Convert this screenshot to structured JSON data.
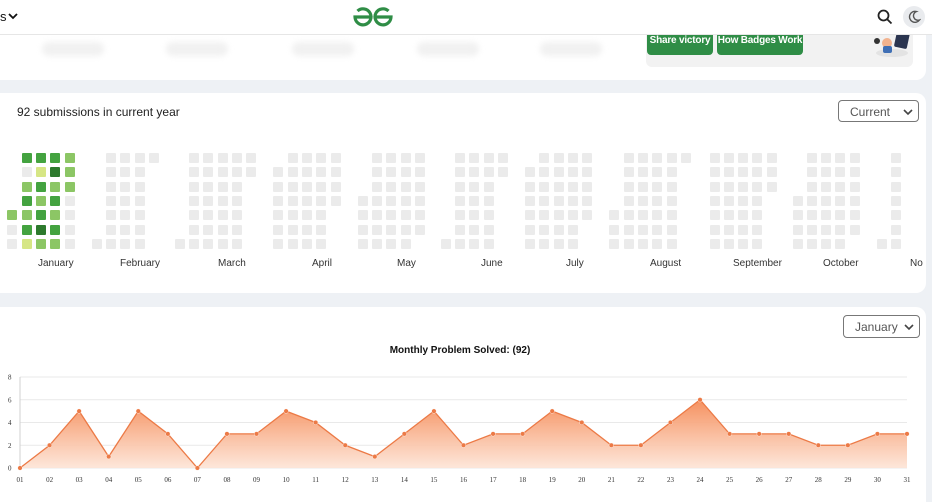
{
  "header": {
    "left_fragment": "s",
    "logo_alt": "GfG"
  },
  "badges": {
    "share_label": "Share victory",
    "how_label": "How Badges Work"
  },
  "heatmap": {
    "title": "92 submissions in current year",
    "year_select": "Current",
    "months": [
      "January",
      "February",
      "March",
      "April",
      "May",
      "June",
      "July",
      "August",
      "September",
      "October",
      "No"
    ],
    "colors": {
      "empty": "#ebebeb",
      "l1": "#d6e685",
      "l2": "#8cc665",
      "l3": "#44a340",
      "l4": "#2d7a2d"
    }
  },
  "chart": {
    "month_select": "January",
    "title": "Monthly Problem Solved: (92)"
  },
  "chart_data": {
    "type": "area",
    "title": "Monthly Problem Solved: (92)",
    "x": [
      "01",
      "02",
      "03",
      "04",
      "05",
      "06",
      "07",
      "08",
      "09",
      "10",
      "11",
      "12",
      "13",
      "14",
      "15",
      "16",
      "17",
      "18",
      "19",
      "20",
      "21",
      "22",
      "23",
      "24",
      "25",
      "26",
      "27",
      "28",
      "29",
      "30",
      "31"
    ],
    "values": [
      0,
      2,
      5,
      1,
      5,
      3,
      0,
      3,
      3,
      5,
      4,
      2,
      1,
      3,
      5,
      2,
      3,
      3,
      5,
      4,
      2,
      2,
      4,
      6,
      3,
      3,
      3,
      2,
      2,
      3,
      3
    ],
    "yticks": [
      "0",
      "2",
      "4",
      "6",
      "8"
    ],
    "ylim": [
      0,
      8
    ],
    "grid": true,
    "colors": {
      "line": "#ec7a46",
      "fill_top": "#f58b57",
      "fill_bottom": "#fde4d6"
    }
  }
}
